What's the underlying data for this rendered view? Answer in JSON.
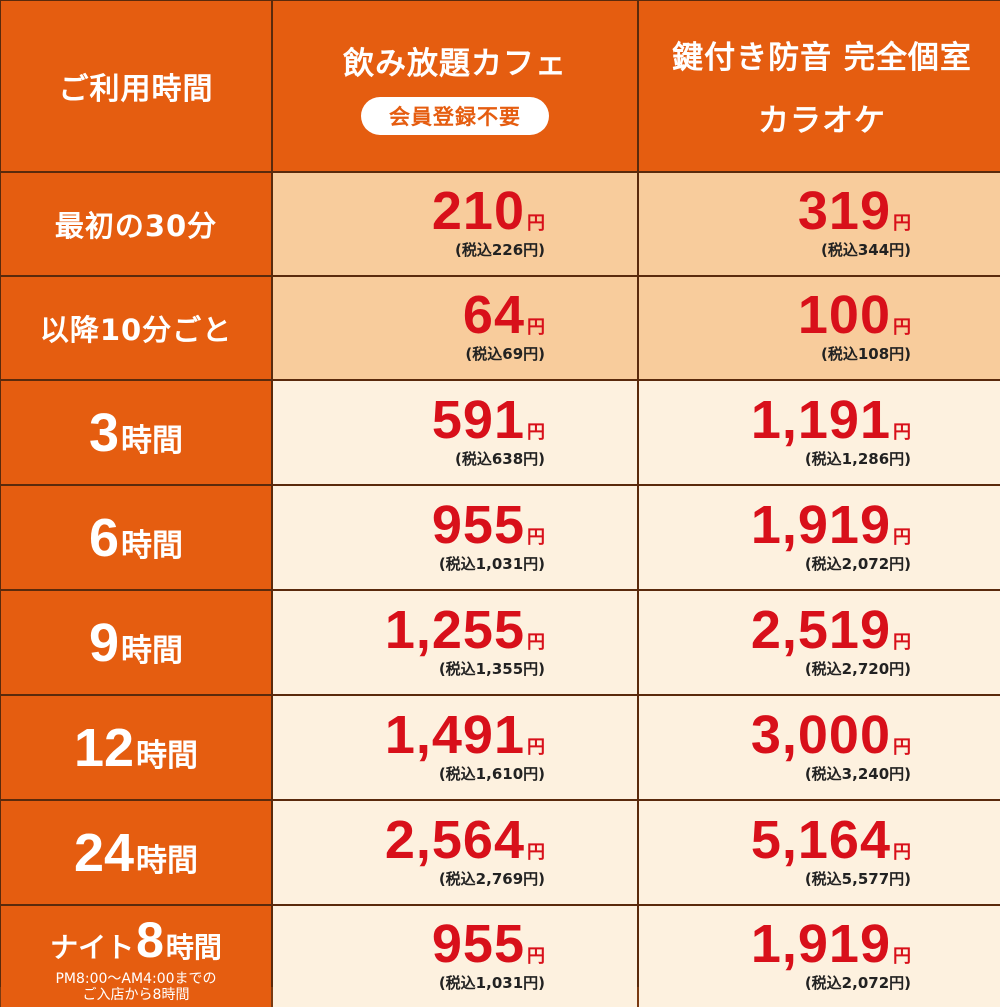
{
  "header": {
    "time_col": "ご利用時間",
    "cafe_title": "飲み放題カフェ",
    "cafe_badge": "会員登録不要",
    "karaoke_line1": "鍵付き防音 完全個室",
    "karaoke_line2": "カラオケ"
  },
  "yen_label": "円",
  "rows": [
    {
      "label": "最初の30分",
      "cafe": "210",
      "cafe_tax": "(税込226円)",
      "karaoke": "319",
      "karaoke_tax": "(税込344円)"
    },
    {
      "label": "以降10分ごと",
      "cafe": "64",
      "cafe_tax": "(税込69円)",
      "karaoke": "100",
      "karaoke_tax": "(税込108円)"
    },
    {
      "num": "3",
      "unit": "時間",
      "cafe": "591",
      "cafe_tax": "(税込638円)",
      "karaoke": "1,191",
      "karaoke_tax": "(税込1,286円)"
    },
    {
      "num": "6",
      "unit": "時間",
      "cafe": "955",
      "cafe_tax": "(税込1,031円)",
      "karaoke": "1,919",
      "karaoke_tax": "(税込2,072円)"
    },
    {
      "num": "9",
      "unit": "時間",
      "cafe": "1,255",
      "cafe_tax": "(税込1,355円)",
      "karaoke": "2,519",
      "karaoke_tax": "(税込2,720円)"
    },
    {
      "num": "12",
      "unit": "時間",
      "cafe": "1,491",
      "cafe_tax": "(税込1,610円)",
      "karaoke": "3,000",
      "karaoke_tax": "(税込3,240円)"
    },
    {
      "num": "24",
      "unit": "時間",
      "cafe": "2,564",
      "cafe_tax": "(税込2,769円)",
      "karaoke": "5,164",
      "karaoke_tax": "(税込5,577円)"
    },
    {
      "prefix": "ナイト",
      "num": "8",
      "unit": "時間",
      "note1": "PM8:00～AM4:00までの",
      "note2": "ご入店から8時間",
      "cafe": "955",
      "cafe_tax": "(税込1,031円)",
      "karaoke": "1,919",
      "karaoke_tax": "(税込2,072円)"
    }
  ],
  "colors": {
    "header_orange": "#e55d10",
    "peach": "#f8cc9c",
    "cream": "#fdf1df",
    "price_red": "#d8101a"
  }
}
